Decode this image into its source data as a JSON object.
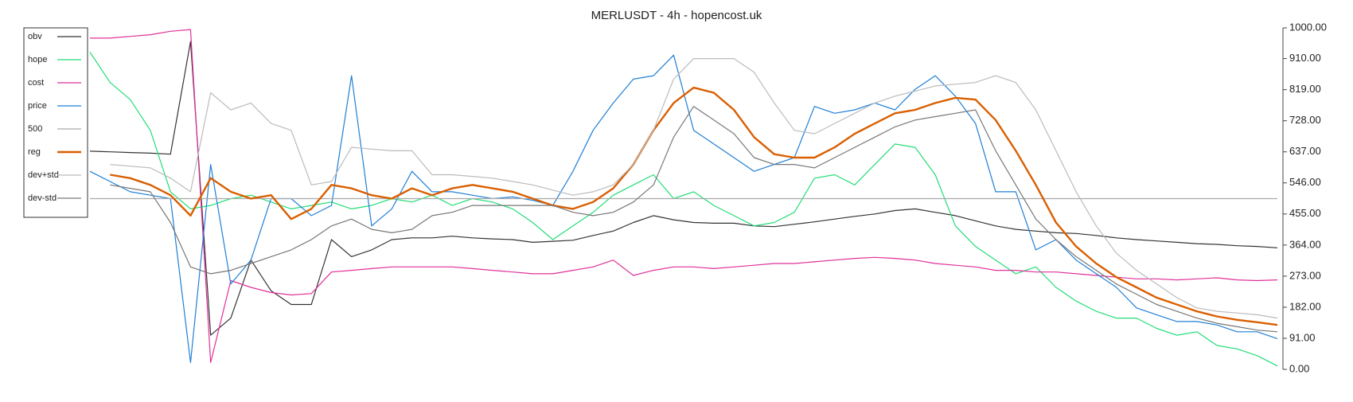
{
  "chart_data": {
    "type": "line",
    "title": "MERLUSDT - 4h - hopencost.uk",
    "ylim": [
      0,
      1000
    ],
    "y_axis_side": "right",
    "legend": "upper left",
    "yticks": [
      {
        "value": 0,
        "label": "0.00"
      },
      {
        "value": 91,
        "label": "91.00"
      },
      {
        "value": 182,
        "label": "182.00"
      },
      {
        "value": 273,
        "label": "273.00"
      },
      {
        "value": 364,
        "label": "364.00"
      },
      {
        "value": 455,
        "label": "455.00"
      },
      {
        "value": 546,
        "label": "546.00"
      },
      {
        "value": 637,
        "label": "637.00"
      },
      {
        "value": 728,
        "label": "728.00"
      },
      {
        "value": 819,
        "label": "819.00"
      },
      {
        "value": 910,
        "label": "910.00"
      },
      {
        "value": 1000,
        "label": "1000.00"
      }
    ],
    "series": [
      {
        "name": "obv",
        "color": "#333333",
        "linewidth": 1.2,
        "values": [
          639,
          637,
          635,
          633,
          630,
          960,
          100,
          150,
          320,
          230,
          190,
          190,
          380,
          330,
          350,
          380,
          385,
          385,
          390,
          385,
          382,
          380,
          372,
          375,
          378,
          392,
          405,
          430,
          450,
          438,
          430,
          428,
          428,
          420,
          418,
          425,
          432,
          440,
          448,
          455,
          465,
          470,
          460,
          450,
          435,
          420,
          410,
          405,
          400,
          398,
          392,
          385,
          380,
          376,
          372,
          368,
          366,
          362,
          360,
          356
        ]
      },
      {
        "name": "hope",
        "color": "#22dd77",
        "linewidth": 1.2,
        "values": [
          929,
          840,
          790,
          700,
          520,
          470,
          480,
          500,
          510,
          490,
          470,
          480,
          490,
          470,
          480,
          500,
          490,
          510,
          480,
          500,
          490,
          470,
          430,
          380,
          420,
          460,
          510,
          540,
          570,
          500,
          520,
          480,
          450,
          420,
          430,
          460,
          560,
          570,
          540,
          600,
          660,
          650,
          570,
          420,
          360,
          320,
          280,
          300,
          240,
          200,
          170,
          150,
          150,
          120,
          100,
          110,
          70,
          60,
          40,
          10
        ]
      },
      {
        "name": "cost",
        "color": "#e0309a",
        "linewidth": 1.2,
        "values": [
          970,
          970,
          975,
          980,
          990,
          995,
          20,
          260,
          240,
          225,
          218,
          222,
          285,
          290,
          295,
          300,
          300,
          300,
          300,
          295,
          290,
          285,
          280,
          280,
          290,
          300,
          320,
          275,
          290,
          300,
          300,
          295,
          300,
          305,
          310,
          310,
          315,
          320,
          325,
          328,
          325,
          320,
          310,
          305,
          300,
          290,
          290,
          285,
          285,
          280,
          275,
          270,
          265,
          265,
          262,
          265,
          268,
          262,
          260,
          262
        ]
      },
      {
        "name": "price",
        "color": "#1f7fd6",
        "linewidth": 1.2,
        "values": [
          580,
          550,
          520,
          510,
          500,
          20,
          600,
          250,
          320,
          500,
          500,
          450,
          480,
          860,
          420,
          470,
          580,
          520,
          520,
          510,
          500,
          505,
          495,
          480,
          580,
          700,
          780,
          850,
          860,
          920,
          700,
          660,
          620,
          580,
          600,
          620,
          770,
          750,
          760,
          780,
          760,
          820,
          860,
          800,
          720,
          520,
          520,
          350,
          380,
          320,
          280,
          240,
          180,
          160,
          140,
          140,
          130,
          110,
          110,
          90
        ]
      },
      {
        "name": "500",
        "color": "#aaaaaa",
        "linewidth": 1.2,
        "values": [
          500,
          500,
          500,
          500,
          500,
          500,
          500,
          500,
          500,
          500,
          500,
          500,
          500,
          500,
          500,
          500,
          500,
          500,
          500,
          500,
          500,
          500,
          500,
          500,
          500,
          500,
          500,
          500,
          500,
          500,
          500,
          500,
          500,
          500,
          500,
          500,
          500,
          500,
          500,
          500,
          500,
          500,
          500,
          500,
          500,
          500,
          500,
          500,
          500,
          500,
          500,
          500,
          500,
          500,
          500,
          500,
          500,
          500,
          500,
          500
        ]
      },
      {
        "name": "reg",
        "color": "#d95f02",
        "linewidth": 2.4,
        "values": [
          null,
          570,
          560,
          540,
          510,
          450,
          560,
          520,
          500,
          510,
          440,
          470,
          540,
          530,
          510,
          500,
          530,
          510,
          530,
          540,
          530,
          520,
          500,
          480,
          470,
          490,
          530,
          600,
          700,
          780,
          825,
          810,
          760,
          680,
          630,
          620,
          620,
          650,
          690,
          720,
          750,
          760,
          780,
          795,
          790,
          730,
          640,
          540,
          430,
          360,
          310,
          270,
          240,
          210,
          190,
          170,
          155,
          145,
          138,
          130
        ]
      },
      {
        "name": "dev+std",
        "color": "#bbbbbb",
        "linewidth": 1.2,
        "values": [
          null,
          600,
          595,
          590,
          560,
          520,
          810,
          760,
          780,
          720,
          700,
          540,
          550,
          650,
          645,
          640,
          640,
          570,
          570,
          565,
          560,
          550,
          540,
          525,
          510,
          520,
          540,
          600,
          700,
          850,
          910,
          910,
          910,
          870,
          780,
          700,
          690,
          720,
          750,
          780,
          800,
          815,
          830,
          835,
          840,
          860,
          840,
          760,
          640,
          520,
          420,
          340,
          290,
          250,
          210,
          180,
          170,
          165,
          160,
          150
        ]
      },
      {
        "name": "dev-std",
        "color": "#777777",
        "linewidth": 1.2,
        "values": [
          null,
          540,
          530,
          520,
          430,
          300,
          280,
          290,
          310,
          330,
          350,
          380,
          420,
          440,
          410,
          400,
          410,
          450,
          460,
          480,
          480,
          480,
          480,
          480,
          460,
          450,
          460,
          490,
          540,
          680,
          770,
          730,
          690,
          620,
          600,
          600,
          590,
          620,
          650,
          680,
          710,
          730,
          740,
          750,
          760,
          640,
          540,
          440,
          380,
          330,
          290,
          250,
          220,
          190,
          170,
          150,
          135,
          125,
          115,
          110
        ]
      }
    ]
  }
}
